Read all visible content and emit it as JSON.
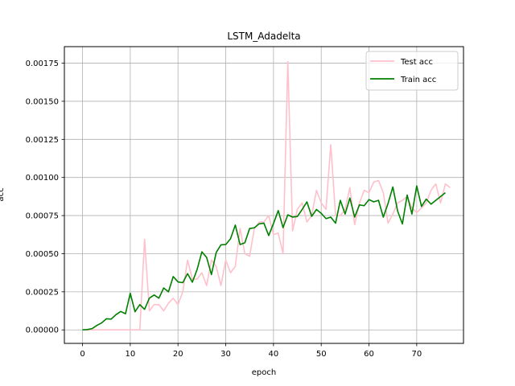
{
  "chart_data": {
    "type": "line",
    "title": "LSTM_Adadelta",
    "xlabel": "epoch",
    "ylabel": "acc",
    "xlim": [
      -3.8,
      79.8
    ],
    "ylim": [
      -8.85e-05,
      0.0018585
    ],
    "xticks": [
      0,
      10,
      20,
      30,
      40,
      50,
      60,
      70
    ],
    "yticks": [
      0.0,
      0.00025,
      0.0005,
      0.00075,
      0.001,
      0.00125,
      0.0015,
      0.00175
    ],
    "ytick_labels": [
      "0.00000",
      "0.00025",
      "0.00050",
      "0.00075",
      "0.00100",
      "0.00125",
      "0.00150",
      "0.00175"
    ],
    "grid": true,
    "legend_position": "top-right",
    "series": [
      {
        "name": "Test acc",
        "color": "#ffc0cb",
        "values": [
          0,
          0,
          0,
          0,
          0,
          0,
          0,
          0,
          0,
          0,
          0,
          0,
          0,
          0.000594,
          0.000125,
          0.000166,
          0.000166,
          0.000125,
          0.000175,
          0.000208,
          0.000166,
          0.00025,
          0.000458,
          0.000333,
          0.000333,
          0.000375,
          0.000291,
          0.000458,
          0.000416,
          0.000291,
          0.000458,
          0.000375,
          0.000416,
          0.000666,
          0.0005,
          0.000483,
          0.000666,
          0.000708,
          0.000708,
          0.00075,
          0.000625,
          0.000635,
          0.0005,
          0.00176,
          0.00065,
          0.000791,
          0.000833,
          0.000708,
          0.00075,
          0.000916,
          0.000833,
          0.000791,
          0.001215,
          0.00075,
          0.00075,
          0.000791,
          0.000933,
          0.00069,
          0.000833,
          0.000916,
          0.0009,
          0.00097,
          0.00098,
          0.0009,
          0.0007,
          0.00076,
          0.000833,
          0.00085,
          0.000875,
          0.0008,
          0.00077,
          0.0008,
          0.000833,
          0.000916,
          0.000958,
          0.000833,
          0.000958,
          0.000933
        ]
      },
      {
        "name": "Train acc",
        "color": "#008000",
        "values": [
          0,
          2.1e-06,
          8.3e-06,
          2.91e-05,
          4.58e-05,
          7.29e-05,
          7.08e-05,
          0.0001,
          0.000121,
          0.000106,
          0.00024,
          0.000119,
          0.000166,
          0.000135,
          0.000208,
          0.000229,
          0.000208,
          0.000275,
          0.00025,
          0.00035,
          0.000315,
          0.00031,
          0.000369,
          0.000313,
          0.000396,
          0.000512,
          0.000475,
          0.000363,
          0.000508,
          0.000558,
          0.00056,
          0.000598,
          0.000688,
          0.00056,
          0.000572,
          0.000665,
          0.00067,
          0.000696,
          0.0007,
          0.000619,
          0.000698,
          0.000783,
          0.000671,
          0.000755,
          0.00074,
          0.000744,
          0.00079,
          0.00084,
          0.000745,
          0.00079,
          0.000765,
          0.00073,
          0.00074,
          0.0007,
          0.00085,
          0.00076,
          0.000865,
          0.00074,
          0.00082,
          0.000815,
          0.000855,
          0.00084,
          0.00085,
          0.00074,
          0.00083,
          0.000938,
          0.00078,
          0.000695,
          0.000885,
          0.00076,
          0.000945,
          0.00081,
          0.000858,
          0.000825,
          0.00085,
          0.000875,
          0.0009
        ]
      }
    ]
  }
}
